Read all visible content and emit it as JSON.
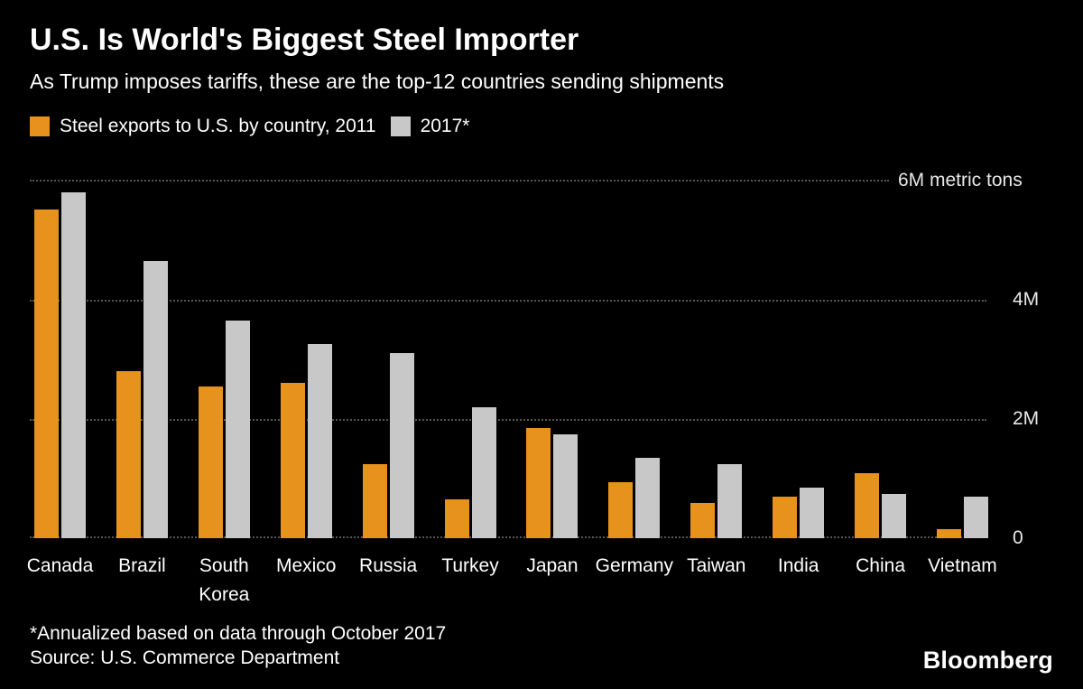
{
  "header": {
    "title": "U.S. Is World's Biggest Steel Importer",
    "subtitle": "As Trump imposes tariffs, these are the top-12 countries sending shipments"
  },
  "legend": {
    "item_2011": "Steel exports to U.S. by country, 2011",
    "item_2017": "2017*"
  },
  "colors": {
    "background": "#000000",
    "text": "#ffffff",
    "gridline": "#555555",
    "series_2011": "#e6921c",
    "series_2017": "#c8c8c8"
  },
  "chart_data": {
    "type": "bar",
    "title": "U.S. Is World's Biggest Steel Importer",
    "subtitle": "As Trump imposes tariffs, these are the top-12 countries sending shipments",
    "unit": "M metric tons",
    "ylim": [
      0,
      6
    ],
    "grid": "dotted horizontal",
    "legend_position": "top-left",
    "categories": [
      "Canada",
      "Brazil",
      "South Korea",
      "Mexico",
      "Russia",
      "Turkey",
      "Japan",
      "Germany",
      "Taiwan",
      "India",
      "China",
      "Vietnam"
    ],
    "series": [
      {
        "name": "2011",
        "color": "#e6921c",
        "values": [
          5.5,
          2.8,
          2.55,
          2.6,
          1.25,
          0.65,
          1.85,
          0.95,
          0.6,
          0.7,
          1.1,
          0.15
        ]
      },
      {
        "name": "2017",
        "color": "#c8c8c8",
        "values": [
          5.8,
          4.65,
          3.65,
          3.25,
          3.1,
          2.2,
          1.75,
          1.35,
          1.25,
          0.85,
          0.75,
          0.7
        ]
      }
    ],
    "yticks": [
      {
        "value": 6,
        "label": "6M metric tons"
      },
      {
        "value": 4,
        "label": "4M"
      },
      {
        "value": 2,
        "label": "2M"
      },
      {
        "value": 0,
        "label": "0"
      }
    ]
  },
  "footer": {
    "note": "*Annualized based on data through October 2017",
    "source": "Source: U.S. Commerce Department",
    "brand": "Bloomberg"
  }
}
